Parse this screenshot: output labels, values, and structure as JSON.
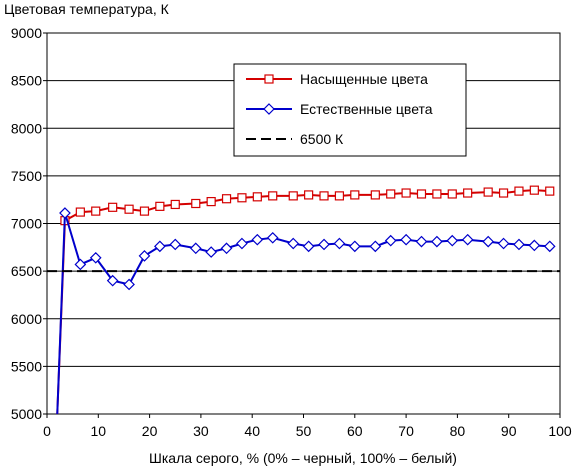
{
  "chart_data": {
    "type": "line",
    "title": "",
    "ylabel": "Цветовая температура, К",
    "xlabel": "Шкала серого, % (0% – черный, 100% – белый)",
    "xlim": [
      0,
      100
    ],
    "ylim": [
      5000,
      9000
    ],
    "x_ticks": [
      "0",
      "10",
      "20",
      "30",
      "40",
      "50",
      "60",
      "70",
      "80",
      "90",
      "100"
    ],
    "y_ticks": [
      "5000",
      "5500",
      "6000",
      "6500",
      "7000",
      "7500",
      "8000",
      "8500",
      "9000"
    ],
    "grid": "horizontal",
    "legend_position": "top-right",
    "series": [
      {
        "name": "Насыщенные цвета",
        "color": "#d40000",
        "marker": "square",
        "x": [
          2,
          3.5,
          6.5,
          9.5,
          12.8,
          16,
          19,
          22,
          25,
          29,
          32,
          35,
          38,
          41,
          44,
          48,
          51,
          54,
          57,
          60,
          64,
          67,
          70,
          73,
          76,
          79,
          82,
          86,
          89,
          92,
          95,
          98
        ],
        "values": [
          5000,
          7030,
          7120,
          7130,
          7170,
          7150,
          7130,
          7180,
          7200,
          7210,
          7230,
          7260,
          7270,
          7280,
          7290,
          7290,
          7300,
          7290,
          7290,
          7300,
          7300,
          7310,
          7320,
          7310,
          7310,
          7310,
          7320,
          7330,
          7320,
          7340,
          7350,
          7340
        ]
      },
      {
        "name": "Естественные цвета",
        "color": "#0000cc",
        "marker": "diamond",
        "x": [
          2,
          3.5,
          6.5,
          9.5,
          12.8,
          16,
          19,
          22,
          25,
          29,
          32,
          35,
          38,
          41,
          44,
          48,
          51,
          54,
          57,
          60,
          64,
          67,
          70,
          73,
          76,
          79,
          82,
          86,
          89,
          92,
          95,
          98
        ],
        "values": [
          5000,
          7110,
          6570,
          6640,
          6400,
          6360,
          6660,
          6760,
          6780,
          6740,
          6700,
          6740,
          6790,
          6830,
          6850,
          6790,
          6760,
          6780,
          6790,
          6760,
          6760,
          6820,
          6830,
          6810,
          6810,
          6820,
          6830,
          6810,
          6790,
          6780,
          6770,
          6760
        ]
      },
      {
        "name": "6500 К",
        "color": "#000000",
        "marker": "none",
        "line_style": "dashed",
        "x": [
          0,
          100
        ],
        "values": [
          6500,
          6500
        ]
      }
    ]
  }
}
